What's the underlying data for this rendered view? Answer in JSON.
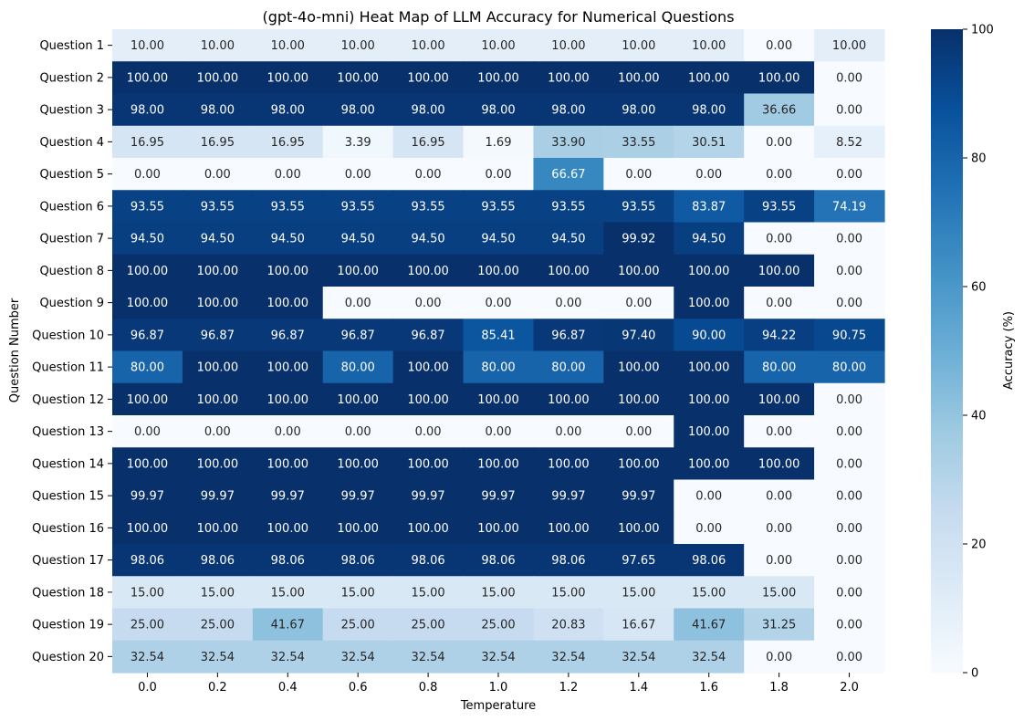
{
  "chart_data": {
    "type": "heatmap",
    "title": "(gpt-4o-mni) Heat Map of LLM Accuracy for Numerical Questions",
    "xlabel": "Temperature",
    "ylabel": "Question Number",
    "x": [
      "0.0",
      "0.2",
      "0.4",
      "0.6",
      "0.8",
      "1.0",
      "1.2",
      "1.4",
      "1.6",
      "1.8",
      "2.0"
    ],
    "y": [
      "Question 1",
      "Question 2",
      "Question 3",
      "Question 4",
      "Question 5",
      "Question 6",
      "Question 7",
      "Question 8",
      "Question 9",
      "Question 10",
      "Question 11",
      "Question 12",
      "Question 13",
      "Question 14",
      "Question 15",
      "Question 16",
      "Question 17",
      "Question 18",
      "Question 19",
      "Question 20"
    ],
    "values": [
      [
        10.0,
        10.0,
        10.0,
        10.0,
        10.0,
        10.0,
        10.0,
        10.0,
        10.0,
        0.0,
        10.0
      ],
      [
        100.0,
        100.0,
        100.0,
        100.0,
        100.0,
        100.0,
        100.0,
        100.0,
        100.0,
        100.0,
        0.0
      ],
      [
        98.0,
        98.0,
        98.0,
        98.0,
        98.0,
        98.0,
        98.0,
        98.0,
        98.0,
        36.66,
        0.0
      ],
      [
        16.95,
        16.95,
        16.95,
        3.39,
        16.95,
        1.69,
        33.9,
        33.55,
        30.51,
        0.0,
        8.52
      ],
      [
        0.0,
        0.0,
        0.0,
        0.0,
        0.0,
        0.0,
        66.67,
        0.0,
        0.0,
        0.0,
        0.0
      ],
      [
        93.55,
        93.55,
        93.55,
        93.55,
        93.55,
        93.55,
        93.55,
        93.55,
        83.87,
        93.55,
        74.19
      ],
      [
        94.5,
        94.5,
        94.5,
        94.5,
        94.5,
        94.5,
        94.5,
        99.92,
        94.5,
        0.0,
        0.0
      ],
      [
        100.0,
        100.0,
        100.0,
        100.0,
        100.0,
        100.0,
        100.0,
        100.0,
        100.0,
        100.0,
        0.0
      ],
      [
        100.0,
        100.0,
        100.0,
        0.0,
        0.0,
        0.0,
        0.0,
        0.0,
        100.0,
        0.0,
        0.0
      ],
      [
        96.87,
        96.87,
        96.87,
        96.87,
        96.87,
        85.41,
        96.87,
        97.4,
        90.0,
        94.22,
        90.75
      ],
      [
        80.0,
        100.0,
        100.0,
        80.0,
        100.0,
        80.0,
        80.0,
        100.0,
        100.0,
        80.0,
        80.0
      ],
      [
        100.0,
        100.0,
        100.0,
        100.0,
        100.0,
        100.0,
        100.0,
        100.0,
        100.0,
        100.0,
        0.0
      ],
      [
        0.0,
        0.0,
        0.0,
        0.0,
        0.0,
        0.0,
        0.0,
        0.0,
        100.0,
        0.0,
        0.0
      ],
      [
        100.0,
        100.0,
        100.0,
        100.0,
        100.0,
        100.0,
        100.0,
        100.0,
        100.0,
        100.0,
        0.0
      ],
      [
        99.97,
        99.97,
        99.97,
        99.97,
        99.97,
        99.97,
        99.97,
        99.97,
        0.0,
        0.0,
        0.0
      ],
      [
        100.0,
        100.0,
        100.0,
        100.0,
        100.0,
        100.0,
        100.0,
        100.0,
        0.0,
        0.0,
        0.0
      ],
      [
        98.06,
        98.06,
        98.06,
        98.06,
        98.06,
        98.06,
        98.06,
        97.65,
        98.06,
        0.0,
        0.0
      ],
      [
        15.0,
        15.0,
        15.0,
        15.0,
        15.0,
        15.0,
        15.0,
        15.0,
        15.0,
        15.0,
        0.0
      ],
      [
        25.0,
        25.0,
        41.67,
        25.0,
        25.0,
        25.0,
        20.83,
        16.67,
        41.67,
        31.25,
        0.0
      ],
      [
        32.54,
        32.54,
        32.54,
        32.54,
        32.54,
        32.54,
        32.54,
        32.54,
        32.54,
        0.0,
        0.0
      ]
    ],
    "value_format": "2 decimals",
    "colorbar": {
      "label": "Accuracy (%)",
      "range": [
        0,
        100
      ],
      "ticks": [
        "0",
        "20",
        "40",
        "60",
        "80",
        "100"
      ],
      "colormap": "Blues",
      "color_stops": [
        "#f7fbff",
        "#deebf7",
        "#c6dbef",
        "#9ecae1",
        "#6baed6",
        "#4292c6",
        "#2171b5",
        "#08519c",
        "#08306b"
      ]
    },
    "grid": false
  }
}
